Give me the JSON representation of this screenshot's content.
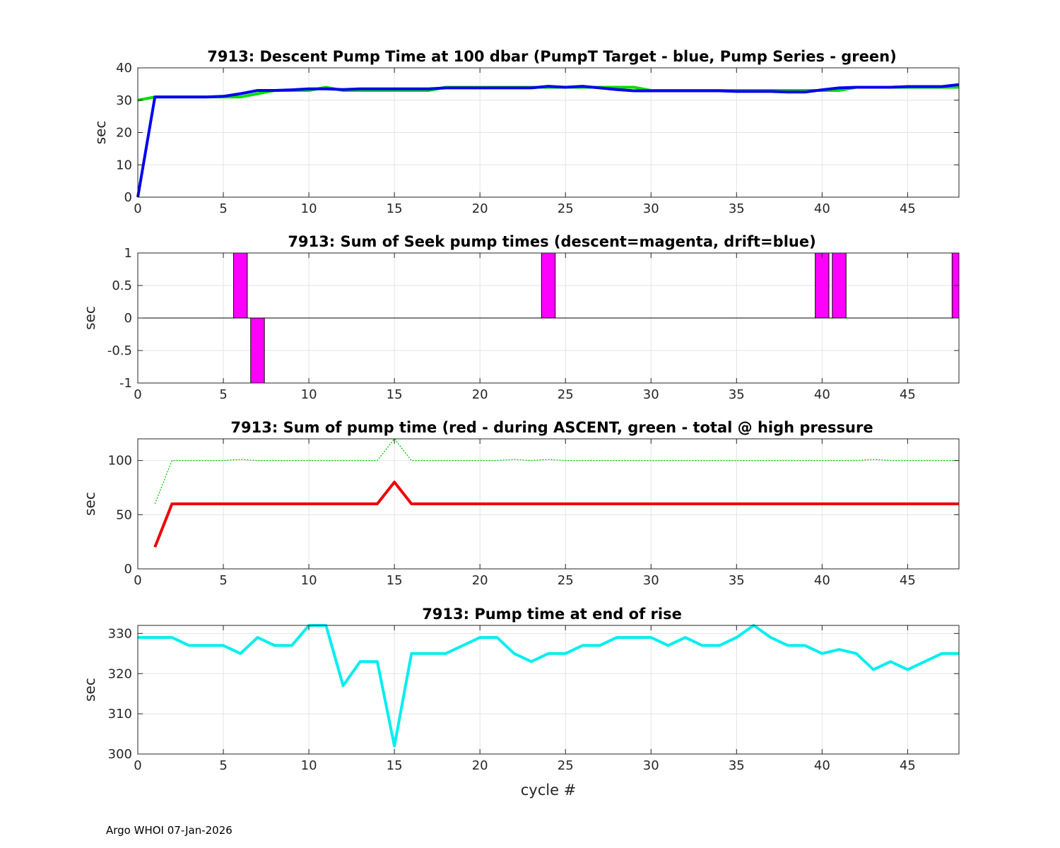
{
  "footer": "Argo WHOI 07-Jan-2026",
  "chart_data": [
    {
      "type": "line",
      "title": "7913: Descent Pump Time at 100 dbar (PumpT Target - blue, Pump Series - green)",
      "xlabel": "",
      "ylabel": "sec",
      "xlim": [
        0,
        48
      ],
      "ylim": [
        0,
        40
      ],
      "xticks": [
        0,
        5,
        10,
        15,
        20,
        25,
        30,
        35,
        40,
        45
      ],
      "yticks": [
        0,
        10,
        20,
        30,
        40
      ],
      "grid": true,
      "series": [
        {
          "color": "#00dd00",
          "width": 4,
          "dash": "",
          "x": [
            0,
            1,
            2,
            3,
            4,
            5,
            6,
            7,
            8,
            9,
            10,
            11,
            12,
            13,
            14,
            15,
            16,
            17,
            18,
            19,
            20,
            21,
            22,
            23,
            24,
            25,
            26,
            27,
            28,
            29,
            30,
            31,
            32,
            33,
            34,
            35,
            36,
            37,
            38,
            39,
            40,
            41,
            42,
            43,
            44,
            45,
            46,
            47,
            48
          ],
          "y": [
            30,
            31,
            31,
            31,
            31,
            31,
            31,
            32,
            33,
            33,
            33,
            34,
            33,
            33,
            33,
            33,
            33,
            33,
            34,
            34,
            34,
            34,
            34,
            34,
            34,
            34,
            34,
            34,
            34,
            34,
            33,
            33,
            33,
            33,
            33,
            33,
            33,
            33,
            33,
            33,
            33,
            33,
            34,
            34,
            34,
            34,
            34,
            34,
            34
          ]
        },
        {
          "color": "#0000ee",
          "width": 4,
          "dash": "",
          "x": [
            0,
            1,
            2,
            3,
            4,
            5,
            6,
            7,
            8,
            9,
            10,
            11,
            12,
            13,
            14,
            15,
            16,
            17,
            18,
            19,
            20,
            21,
            22,
            23,
            24,
            25,
            26,
            27,
            28,
            29,
            30,
            31,
            32,
            33,
            34,
            35,
            36,
            37,
            38,
            39,
            40,
            41,
            42,
            43,
            44,
            45,
            46,
            47,
            48
          ],
          "y": [
            0,
            31,
            31,
            31,
            31,
            31.2,
            32,
            33,
            33,
            33.2,
            33.5,
            33.5,
            33.3,
            33.5,
            33.5,
            33.5,
            33.5,
            33.5,
            33.8,
            33.8,
            33.8,
            33.8,
            33.8,
            33.8,
            34.3,
            34,
            34.3,
            33.8,
            33.3,
            32.9,
            32.9,
            32.9,
            32.9,
            32.9,
            32.9,
            32.7,
            32.7,
            32.7,
            32.5,
            32.5,
            33.2,
            33.8,
            34,
            34,
            34,
            34.2,
            34.2,
            34.2,
            34.8
          ]
        }
      ]
    },
    {
      "type": "bar",
      "title": "7913: Sum of Seek pump times (descent=magenta, drift=blue)",
      "xlabel": "",
      "ylabel": "sec",
      "xlim": [
        0,
        48
      ],
      "ylim": [
        -1,
        1
      ],
      "xticks": [
        0,
        5,
        10,
        15,
        20,
        25,
        30,
        35,
        40,
        45
      ],
      "yticks": [
        -1,
        -0.5,
        0,
        0.5,
        1
      ],
      "ytick_labels": [
        "-1",
        "-0.5",
        "0",
        "0.5",
        "1"
      ],
      "grid": true,
      "bar_width": 0.8,
      "bars": [
        {
          "x": 6,
          "value": 1,
          "color": "#ff00ff"
        },
        {
          "x": 7,
          "value": -1,
          "color": "#ff00ff"
        },
        {
          "x": 24,
          "value": 1,
          "color": "#ff00ff"
        },
        {
          "x": 40,
          "value": 1,
          "color": "#ff00ff"
        },
        {
          "x": 41,
          "value": 1,
          "color": "#ff00ff"
        },
        {
          "x": 48,
          "value": 1,
          "color": "#ff00ff"
        }
      ]
    },
    {
      "type": "line",
      "title": "7913: Sum of pump time (red - during ASCENT, green - total @ high pressure",
      "xlabel": "",
      "ylabel": "sec",
      "xlim": [
        0,
        48
      ],
      "ylim": [
        0,
        120
      ],
      "xticks": [
        0,
        5,
        10,
        15,
        20,
        25,
        30,
        35,
        40,
        45
      ],
      "yticks": [
        0,
        50,
        100
      ],
      "grid": true,
      "series": [
        {
          "color": "#00cc00",
          "width": 1.3,
          "dash": "2,2",
          "x": [
            1,
            2,
            3,
            4,
            5,
            6,
            7,
            8,
            9,
            10,
            11,
            12,
            13,
            14,
            15,
            16,
            17,
            18,
            19,
            20,
            21,
            22,
            23,
            24,
            25,
            26,
            27,
            28,
            29,
            30,
            31,
            32,
            33,
            34,
            35,
            36,
            37,
            38,
            39,
            40,
            41,
            42,
            43,
            44,
            45,
            46,
            47,
            48
          ],
          "y": [
            60,
            100,
            100,
            100,
            100,
            101,
            100,
            100,
            100,
            100,
            100,
            100,
            100,
            100,
            120,
            100,
            100,
            100,
            100,
            100,
            100,
            101,
            100,
            101,
            100,
            100,
            100,
            100,
            100,
            100,
            100,
            100,
            100,
            100,
            100,
            100,
            100,
            100,
            100,
            100,
            100,
            100,
            101,
            100,
            100,
            100,
            100,
            100
          ]
        },
        {
          "color": "#ee0000",
          "width": 4,
          "dash": "",
          "x": [
            1,
            2,
            3,
            4,
            5,
            6,
            7,
            8,
            9,
            10,
            11,
            12,
            13,
            14,
            15,
            16,
            17,
            18,
            19,
            20,
            21,
            22,
            23,
            24,
            25,
            26,
            27,
            28,
            29,
            30,
            31,
            32,
            33,
            34,
            35,
            36,
            37,
            38,
            39,
            40,
            41,
            42,
            43,
            44,
            45,
            46,
            47,
            48
          ],
          "y": [
            20,
            60,
            60,
            60,
            60,
            60,
            60,
            60,
            60,
            60,
            60,
            60,
            60,
            60,
            80,
            60,
            60,
            60,
            60,
            60,
            60,
            60,
            60,
            60,
            60,
            60,
            60,
            60,
            60,
            60,
            60,
            60,
            60,
            60,
            60,
            60,
            60,
            60,
            60,
            60,
            60,
            60,
            60,
            60,
            60,
            60,
            60,
            60
          ]
        }
      ]
    },
    {
      "type": "line",
      "title": "7913: Pump time at end of rise",
      "xlabel": "cycle #",
      "ylabel": "sec",
      "xlim": [
        0,
        48
      ],
      "ylim": [
        300,
        332
      ],
      "xticks": [
        0,
        5,
        10,
        15,
        20,
        25,
        30,
        35,
        40,
        45
      ],
      "yticks": [
        300,
        310,
        320,
        330
      ],
      "grid": true,
      "series": [
        {
          "color": "#00eeee",
          "width": 4,
          "dash": "",
          "x": [
            0,
            1,
            2,
            3,
            4,
            5,
            6,
            7,
            8,
            9,
            10,
            11,
            12,
            13,
            14,
            15,
            16,
            17,
            18,
            19,
            20,
            21,
            22,
            23,
            24,
            25,
            26,
            27,
            28,
            29,
            30,
            31,
            32,
            33,
            34,
            35,
            36,
            37,
            38,
            39,
            40,
            41,
            42,
            43,
            44,
            45,
            46,
            47,
            48
          ],
          "y": [
            329,
            329,
            329,
            327,
            327,
            327,
            325,
            329,
            327,
            327,
            332,
            332,
            317,
            323,
            323,
            302,
            325,
            325,
            325,
            327,
            329,
            329,
            325,
            323,
            325,
            325,
            327,
            327,
            329,
            329,
            329,
            327,
            329,
            327,
            327,
            329,
            332,
            329,
            327,
            327,
            325,
            326,
            325,
            321,
            323,
            321,
            323,
            325,
            325
          ]
        }
      ]
    }
  ]
}
